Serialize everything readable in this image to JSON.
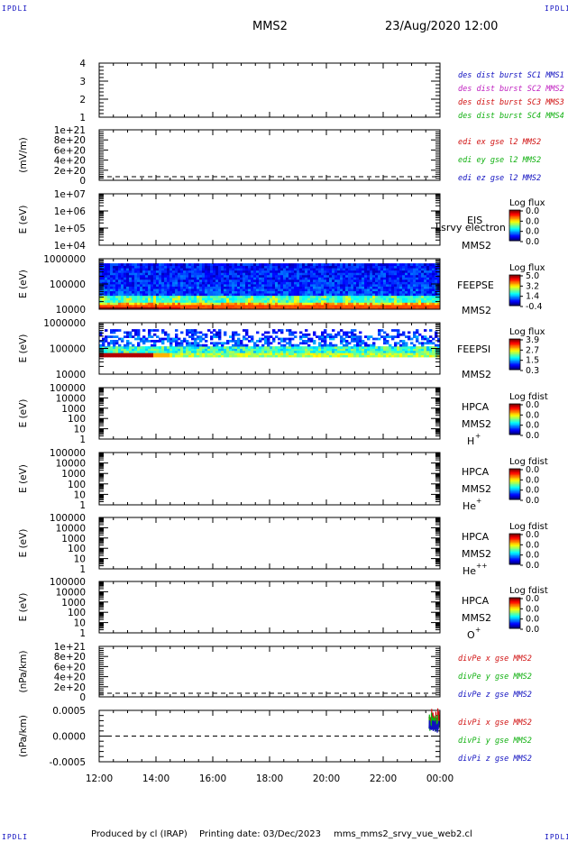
{
  "header": {
    "corner_tl": "IPDLI",
    "corner_tr": "IPDLI",
    "corner_bl": "IPDLI",
    "corner_br": "IPDLI",
    "spacecraft": "MMS2",
    "datetime": "23/Aug/2020 12:00"
  },
  "footer": {
    "produced": "Produced by cl (IRAP)",
    "printing": "Printing date: 03/Dec/2023",
    "script": "mms_mms2_srvy_vue_web2.cl"
  },
  "colors": {
    "blue": "#1010c0",
    "magenta": "#c020c0",
    "red": "#d01010",
    "green": "#10b010",
    "black": "#000000"
  },
  "chart_data": [
    {
      "type": "line",
      "panel": "des-dist-burst",
      "ylabel": "",
      "yticks": [
        "1",
        "2",
        "3",
        "4"
      ],
      "ylim": [
        0.5,
        4.5
      ],
      "legend": [
        {
          "text": "des dist burst SC1 MMS1",
          "color": "#1010c0"
        },
        {
          "text": "des dist burst SC2 MMS2",
          "color": "#c020c0"
        },
        {
          "text": "des dist burst SC3 MMS3",
          "color": "#d01010"
        },
        {
          "text": "des dist burst SC4 MMS4",
          "color": "#10b010"
        }
      ],
      "series": []
    },
    {
      "type": "line",
      "panel": "edi-e",
      "ylabel": "(mV/m)",
      "yticks": [
        "0",
        "2e+20",
        "4e+20",
        "6e+20",
        "8e+20",
        "1e+21"
      ],
      "ylim": [
        0,
        1e+21
      ],
      "zero_line": true,
      "legend": [
        {
          "text": "edi ex gse l2 MMS2",
          "color": "#d01010"
        },
        {
          "text": "edi ey gse l2 MMS2",
          "color": "#10b010"
        },
        {
          "text": "edi ez gse l2 MMS2",
          "color": "#1010c0"
        }
      ],
      "series": []
    },
    {
      "type": "heatmap",
      "panel": "eis",
      "ylabel": "E (eV)",
      "yticks": [
        "1e+04",
        "1e+05",
        "1e+06",
        "1e+07"
      ],
      "ylim": [
        10000.0,
        10000000.0
      ],
      "yscale": "log",
      "instrument": [
        "EIS",
        "MMS2"
      ],
      "overlay": "Lsrvy electron to",
      "colorbar_title": "Log flux",
      "colorbar_ticks": [
        "0.0",
        "0.0",
        "0.0",
        "0.0"
      ],
      "data": "none"
    },
    {
      "type": "heatmap",
      "panel": "feeps-electron",
      "ylabel": "E (eV)",
      "yticks": [
        "10000",
        "100000",
        "1000000"
      ],
      "ylim": [
        10000.0,
        1000000.0
      ],
      "yscale": "log",
      "instrument": [
        "FEEPSE",
        "MMS2"
      ],
      "colorbar_title": "Log flux",
      "colorbar_ticks": [
        "5.0",
        "3.2",
        "1.4",
        "-0.4"
      ],
      "data": "full coverage 12:00-00:00; band near 40-50 keV red, upward to ~800 keV blue"
    },
    {
      "type": "heatmap",
      "panel": "feeps-ion",
      "ylabel": "E (eV)",
      "yticks": [
        "10000",
        "100000",
        "1000000"
      ],
      "ylim": [
        10000.0,
        1000000.0
      ],
      "yscale": "log",
      "instrument": [
        "FEEPSI",
        "MMS2"
      ],
      "colorbar_title": "Log flux",
      "colorbar_ticks": [
        "3.9",
        "2.7",
        "1.5",
        "0.3"
      ],
      "data": "full coverage; low-energy band ~60 keV red until ~14:00, scattered noise above ~200 keV"
    },
    {
      "type": "heatmap",
      "panel": "hpca-h",
      "ylabel": "E (eV)",
      "yticks": [
        "1",
        "10",
        "100",
        "1000",
        "10000",
        "100000"
      ],
      "ylim": [
        1,
        100000.0
      ],
      "yscale": "log",
      "instrument": [
        "HPCA",
        "MMS2",
        "H",
        "+"
      ],
      "colorbar_title": "Log fdist",
      "colorbar_ticks": [
        "0.0",
        "0.0",
        "0.0",
        "0.0"
      ],
      "data": "none"
    },
    {
      "type": "heatmap",
      "panel": "hpca-he",
      "ylabel": "E (eV)",
      "yticks": [
        "1",
        "10",
        "100",
        "1000",
        "10000",
        "100000"
      ],
      "ylim": [
        1,
        100000.0
      ],
      "yscale": "log",
      "instrument": [
        "HPCA",
        "MMS2",
        "He",
        "+"
      ],
      "colorbar_title": "Log fdist",
      "colorbar_ticks": [
        "0.0",
        "0.0",
        "0.0",
        "0.0"
      ],
      "data": "none"
    },
    {
      "type": "heatmap",
      "panel": "hpca-he2",
      "ylabel": "E (eV)",
      "yticks": [
        "1",
        "10",
        "100",
        "1000",
        "10000",
        "100000"
      ],
      "ylim": [
        1,
        100000.0
      ],
      "yscale": "log",
      "instrument": [
        "HPCA",
        "MMS2",
        "He",
        "++"
      ],
      "colorbar_title": "Log fdist",
      "colorbar_ticks": [
        "0.0",
        "0.0",
        "0.0",
        "0.0"
      ],
      "data": "none"
    },
    {
      "type": "heatmap",
      "panel": "hpca-o",
      "ylabel": "E (eV)",
      "yticks": [
        "1",
        "10",
        "100",
        "1000",
        "10000",
        "100000"
      ],
      "ylim": [
        1,
        100000.0
      ],
      "yscale": "log",
      "instrument": [
        "HPCA",
        "MMS2",
        "O",
        "+"
      ],
      "colorbar_title": "Log fdist",
      "colorbar_ticks": [
        "0.0",
        "0.0",
        "0.0",
        "0.0"
      ],
      "data": "none"
    },
    {
      "type": "line",
      "panel": "divpe",
      "ylabel": "(nPa/km)",
      "yticks": [
        "0",
        "2e+20",
        "4e+20",
        "6e+20",
        "8e+20",
        "1e+21"
      ],
      "ylim": [
        0,
        1e+21
      ],
      "zero_line": true,
      "legend": [
        {
          "text": "divPe x gse MMS2",
          "color": "#d01010"
        },
        {
          "text": "divPe y gse MMS2",
          "color": "#10b010"
        },
        {
          "text": "divPe z gse MMS2",
          "color": "#1010c0"
        }
      ],
      "series": []
    },
    {
      "type": "line",
      "panel": "divpi",
      "ylabel": "(nPa/km)",
      "yticks": [
        "-0.0005",
        "0.0000",
        "0.0005"
      ],
      "ylim": [
        -0.0009,
        0.0009
      ],
      "zero_line": true,
      "legend": [
        {
          "text": "divPi x gse MMS2",
          "color": "#d01010"
        },
        {
          "text": "divPi y gse MMS2",
          "color": "#10b010"
        },
        {
          "text": "divPi z gse MMS2",
          "color": "#1010c0"
        }
      ],
      "series": [
        {
          "name": "divPi x gse MMS2",
          "color": "#d01010",
          "x": [
            "23:45",
            "23:50",
            "23:55",
            "24:00"
          ],
          "y": [
            0.00055,
            -0.0004,
            0.0007,
            -0.0006
          ]
        },
        {
          "name": "divPi y gse MMS2",
          "color": "#10b010",
          "x": [
            "23:45",
            "23:50",
            "23:55",
            "24:00"
          ],
          "y": [
            0.0004,
            -0.0006,
            0.0005,
            -0.0003
          ]
        },
        {
          "name": "divPi z gse MMS2",
          "color": "#1010c0",
          "x": [
            "23:45",
            "23:50",
            "23:55",
            "24:00"
          ],
          "y": [
            0.0002,
            -0.0005,
            0.0003,
            -0.0004
          ]
        }
      ]
    }
  ],
  "time_axis": {
    "ticks": [
      "12:00",
      "14:00",
      "16:00",
      "18:00",
      "20:00",
      "22:00",
      "00:00"
    ],
    "range_hours": [
      12,
      24
    ]
  }
}
